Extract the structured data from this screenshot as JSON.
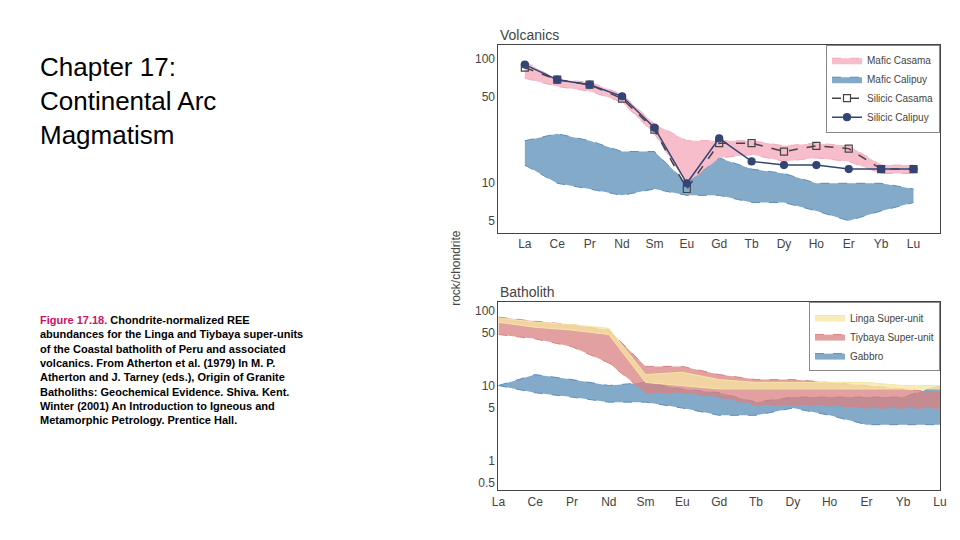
{
  "title": "Chapter 17:\nContinental Arc\nMagmatism",
  "annotations": [
    {
      "text": "Figure 17.18.",
      "color": "#cc1166"
    },
    {
      "text": " Chondrite-normalized REE\nabundances for the Linga and Tiybaya super-units\nof the Coastal batholith of Peru and associated\nvolcanics. From Atherton et al. (1979) In M. P.\nAtherton and J. Tarney (eds.), Origin of Granite\nBatholiths: Geochemical Evidence. Shiva. Kent.\nWinter (2001) An Introduction to Igneous and\nMetamorphic Petrology. Prentice Hall."
    }
  ],
  "ylabel": "rock/chondrite",
  "chart_data": [
    {
      "type": "line",
      "title": "Volcanics",
      "categories": [
        "La",
        "Ce",
        "Pr",
        "Nd",
        "Sm",
        "Eu",
        "Gd",
        "Tb",
        "Dy",
        "Ho",
        "Er",
        "Yb",
        "Lu"
      ],
      "log": "y",
      "ylim": [
        4,
        130
      ],
      "yticks": [
        5,
        10,
        50,
        100
      ],
      "grid": false,
      "legend": "upper right",
      "series": [
        {
          "name": "Mafic Casama",
          "type": "area",
          "color": "#f4a7b9",
          "line_style": "dash",
          "upper": [
            95,
            68,
            65,
            52,
            30,
            22,
            22,
            22,
            20,
            21,
            20,
            14,
            14
          ],
          "lower": [
            70,
            60,
            55,
            45,
            25,
            10,
            16,
            17,
            15,
            16,
            15,
            12,
            12
          ]
        },
        {
          "name": "Mafic Calipuy",
          "type": "area",
          "color": "#5b8db8",
          "line_style": "dash",
          "upper": [
            22,
            25,
            22,
            18,
            18,
            10,
            16,
            13,
            12,
            10,
            10,
            10,
            9
          ],
          "lower": [
            14,
            10,
            9,
            8,
            9,
            8,
            8,
            7,
            7,
            6,
            5,
            6,
            7
          ]
        },
        {
          "name": "Silicic Casama",
          "type": "line",
          "color": "#444444",
          "line_style": "dash",
          "marker": "square-open",
          "values": [
            85,
            68,
            62,
            48,
            27,
            9,
            21,
            21,
            18,
            20,
            19,
            13,
            13
          ]
        },
        {
          "name": "Silicic Calipuy",
          "type": "line",
          "color": "#334477",
          "line_style": "solid",
          "marker": "circle",
          "values": [
            90,
            68,
            62,
            50,
            28,
            10,
            23,
            15,
            14,
            14,
            13,
            13,
            13
          ]
        }
      ]
    },
    {
      "type": "line",
      "title": "Batholith",
      "categories": [
        "La",
        "Ce",
        "Pr",
        "Nd",
        "Sm",
        "Eu",
        "Gd",
        "Tb",
        "Dy",
        "Ho",
        "Er",
        "Yb",
        "Lu"
      ],
      "log": "y",
      "ylim": [
        0.4,
        130
      ],
      "yticks": [
        0.5,
        1,
        5,
        10,
        50,
        100
      ],
      "grid": false,
      "legend": "upper right",
      "series": [
        {
          "name": "Linga Super-unit",
          "type": "area",
          "color": "#f5e6a3",
          "line_style": "solid",
          "upper": [
            80,
            70,
            65,
            58,
            14,
            15,
            12,
            11,
            11,
            11,
            11,
            10,
            10
          ],
          "lower": [
            70,
            60,
            55,
            48,
            11,
            10,
            9,
            9,
            9,
            9,
            9,
            9,
            9
          ]
        },
        {
          "name": "Tiybaya Super-unit",
          "type": "area",
          "color": "#d98080",
          "line_style": "dash",
          "upper": [
            82,
            72,
            65,
            55,
            18,
            18,
            14,
            12,
            12,
            11,
            10,
            9,
            8
          ],
          "lower": [
            48,
            42,
            33,
            20,
            8,
            8,
            7,
            5.5,
            5.5,
            5.5,
            5,
            5,
            5
          ]
        },
        {
          "name": "Gabbro",
          "type": "area",
          "color": "#5b8db8",
          "line_style": "dash",
          "upper": [
            10,
            14,
            12,
            10,
            11,
            9,
            8,
            6,
            7,
            7,
            7,
            7,
            10
          ],
          "lower": [
            10,
            8,
            7,
            6,
            6,
            5,
            4,
            4,
            5,
            4,
            3,
            3,
            3
          ]
        }
      ]
    }
  ]
}
